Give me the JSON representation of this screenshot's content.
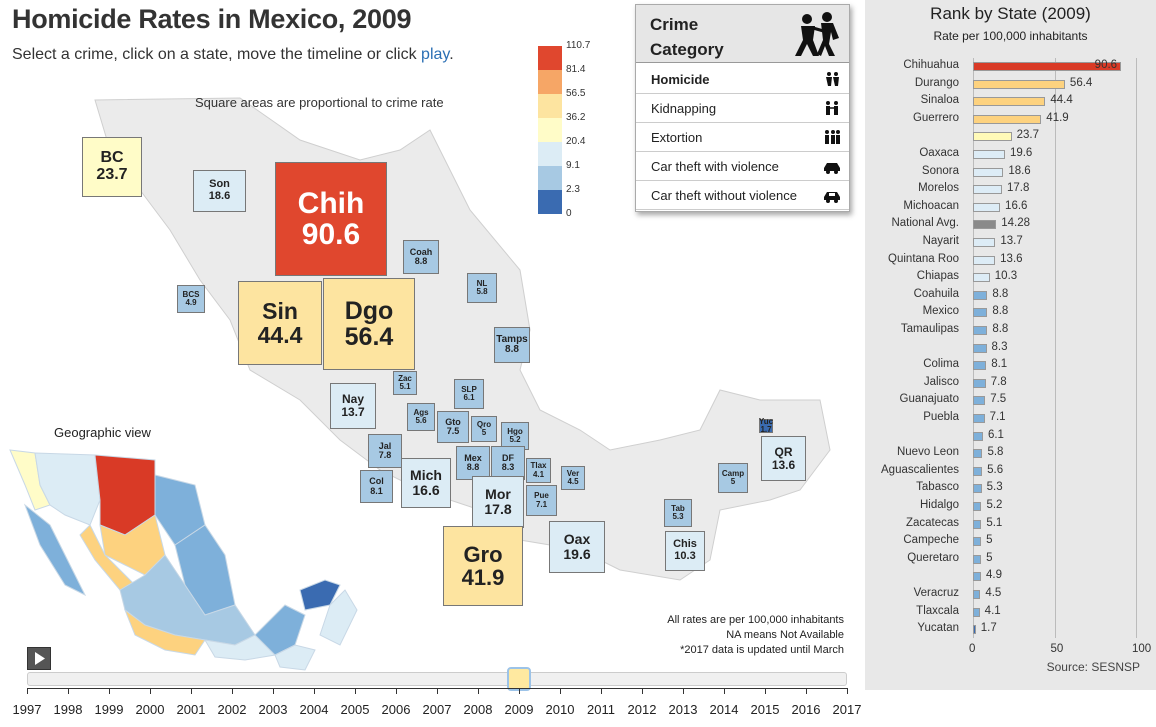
{
  "header": {
    "title": "Homicide Rates in Mexico, 2009",
    "subtitle_pre": "Select a crime, click on a state, move the timeline or click ",
    "play_link": "play",
    "subtitle_post": ".",
    "square_note": "Square areas are proportional to crime rate"
  },
  "legend": {
    "ticks": [
      "110.7",
      "81.4",
      "56.5",
      "36.2",
      "20.4",
      "9.1",
      "2.3",
      "0"
    ],
    "colors": [
      "#e0472e",
      "#f6a666",
      "#fde4a0",
      "#fffcc8",
      "#dcecf5",
      "#a7c9e3",
      "#3a6bb1"
    ]
  },
  "crime_panel": {
    "header": "Crime Category",
    "items": [
      {
        "label": "Homicide",
        "icon": "homicide-icon",
        "selected": true
      },
      {
        "label": "Kidnapping",
        "icon": "kidnapping-icon",
        "selected": false
      },
      {
        "label": "Extortion",
        "icon": "extortion-icon",
        "selected": false
      },
      {
        "label": "Car theft with violence",
        "icon": "car-theft-violent-icon",
        "selected": false
      },
      {
        "label": "Car theft without violence",
        "icon": "car-theft-icon",
        "selected": false
      }
    ]
  },
  "squares": [
    {
      "abbr": "BC",
      "value": "23.7"
    },
    {
      "abbr": "Son",
      "value": "18.6"
    },
    {
      "abbr": "Chih",
      "value": "90.6"
    },
    {
      "abbr": "Coah",
      "value": "8.8"
    },
    {
      "abbr": "BCS",
      "value": "4.9"
    },
    {
      "abbr": "Sin",
      "value": "44.4"
    },
    {
      "abbr": "Dgo",
      "value": "56.4"
    },
    {
      "abbr": "NL",
      "value": "5.8"
    },
    {
      "abbr": "Tamps",
      "value": "8.8"
    },
    {
      "abbr": "Zac",
      "value": "5.1"
    },
    {
      "abbr": "SLP",
      "value": "6.1"
    },
    {
      "abbr": "Nay",
      "value": "13.7"
    },
    {
      "abbr": "Ags",
      "value": "5.6"
    },
    {
      "abbr": "Gto",
      "value": "7.5"
    },
    {
      "abbr": "Qro",
      "value": "5"
    },
    {
      "abbr": "Hgo",
      "value": "5.2"
    },
    {
      "abbr": "Jal",
      "value": "7.8"
    },
    {
      "abbr": "Mex",
      "value": "8.8"
    },
    {
      "abbr": "DF",
      "value": "8.3"
    },
    {
      "abbr": "Tlax",
      "value": "4.1"
    },
    {
      "abbr": "Ver",
      "value": "4.5"
    },
    {
      "abbr": "Col",
      "value": "8.1"
    },
    {
      "abbr": "Mich",
      "value": "16.6"
    },
    {
      "abbr": "Mor",
      "value": "17.8"
    },
    {
      "abbr": "Pue",
      "value": "7.1"
    },
    {
      "abbr": "Yuc",
      "value": "1.7"
    },
    {
      "abbr": "QR",
      "value": "13.6"
    },
    {
      "abbr": "Camp",
      "value": "5"
    },
    {
      "abbr": "Tab",
      "value": "5.3"
    },
    {
      "abbr": "Gro",
      "value": "41.9"
    },
    {
      "abbr": "Oax",
      "value": "19.6"
    },
    {
      "abbr": "Chis",
      "value": "10.3"
    }
  ],
  "geo_label": "Geographic view",
  "notes": [
    "All rates are per 100,000 inhabitants",
    "NA means Not Available",
    "*2017 data is updated until March"
  ],
  "timeline": {
    "years": [
      "1997",
      "1998",
      "1999",
      "2000",
      "2001",
      "2002",
      "2003",
      "2004",
      "2005",
      "2006",
      "2007",
      "2008",
      "2009",
      "2010",
      "2011",
      "2012",
      "2013",
      "2014",
      "2015",
      "2016",
      "2017"
    ],
    "selected": "2009"
  },
  "chart_data": {
    "type": "bar",
    "title": "Rank by State (2009)",
    "subtitle": "Rate per 100,000 inhabitants",
    "source": "Source: SESNSP",
    "xlim": [
      0,
      100
    ],
    "xticks": [
      "0",
      "50",
      "100"
    ],
    "grid": true,
    "rows": [
      {
        "label": "Chihuahua",
        "value": 90.6,
        "shown": "90.6",
        "color": "#d93a26"
      },
      {
        "label": "Durango",
        "value": 56.4,
        "shown": "56.4",
        "color": "#fdd27f"
      },
      {
        "label": "Sinaloa",
        "value": 44.4,
        "shown": "44.4",
        "color": "#fdd27f"
      },
      {
        "label": "Guerrero",
        "value": 41.9,
        "shown": "41.9",
        "color": "#fdd27f"
      },
      {
        "label": "",
        "value": 23.7,
        "shown": "23.7",
        "color": "#fffab8"
      },
      {
        "label": "Oaxaca",
        "value": 19.6,
        "shown": "19.6",
        "color": "#ddecf6"
      },
      {
        "label": "Sonora",
        "value": 18.6,
        "shown": "18.6",
        "color": "#ddecf6"
      },
      {
        "label": "Morelos",
        "value": 17.8,
        "shown": "17.8",
        "color": "#ddecf6"
      },
      {
        "label": "Michoacan",
        "value": 16.6,
        "shown": "16.6",
        "color": "#ddecf6"
      },
      {
        "label": "National Avg.",
        "value": 14.28,
        "shown": "14.28",
        "color": "#8a8a8a"
      },
      {
        "label": "Nayarit",
        "value": 13.7,
        "shown": "13.7",
        "color": "#ddecf6"
      },
      {
        "label": "Quintana Roo",
        "value": 13.6,
        "shown": "13.6",
        "color": "#ddecf6"
      },
      {
        "label": "Chiapas",
        "value": 10.3,
        "shown": "10.3",
        "color": "#ddecf6"
      },
      {
        "label": "Coahuila",
        "value": 8.8,
        "shown": "8.8",
        "color": "#7eb0da"
      },
      {
        "label": "Mexico",
        "value": 8.8,
        "shown": "8.8",
        "color": "#7eb0da"
      },
      {
        "label": "Tamaulipas",
        "value": 8.8,
        "shown": "8.8",
        "color": "#7eb0da"
      },
      {
        "label": "",
        "value": 8.3,
        "shown": "8.3",
        "color": "#7eb0da"
      },
      {
        "label": "Colima",
        "value": 8.1,
        "shown": "8.1",
        "color": "#7eb0da"
      },
      {
        "label": "Jalisco",
        "value": 7.8,
        "shown": "7.8",
        "color": "#7eb0da"
      },
      {
        "label": "Guanajuato",
        "value": 7.5,
        "shown": "7.5",
        "color": "#7eb0da"
      },
      {
        "label": "Puebla",
        "value": 7.1,
        "shown": "7.1",
        "color": "#7eb0da"
      },
      {
        "label": "",
        "value": 6.1,
        "shown": "6.1",
        "color": "#7eb0da"
      },
      {
        "label": "Nuevo Leon",
        "value": 5.8,
        "shown": "5.8",
        "color": "#7eb0da"
      },
      {
        "label": "Aguascalientes",
        "value": 5.6,
        "shown": "5.6",
        "color": "#7eb0da"
      },
      {
        "label": "Tabasco",
        "value": 5.3,
        "shown": "5.3",
        "color": "#7eb0da"
      },
      {
        "label": "Hidalgo",
        "value": 5.2,
        "shown": "5.2",
        "color": "#7eb0da"
      },
      {
        "label": "Zacatecas",
        "value": 5.1,
        "shown": "5.1",
        "color": "#7eb0da"
      },
      {
        "label": "Campeche",
        "value": 5,
        "shown": "5",
        "color": "#7eb0da"
      },
      {
        "label": "Queretaro",
        "value": 5,
        "shown": "5",
        "color": "#7eb0da"
      },
      {
        "label": "",
        "value": 4.9,
        "shown": "4.9",
        "color": "#7eb0da"
      },
      {
        "label": "Veracruz",
        "value": 4.5,
        "shown": "4.5",
        "color": "#7eb0da"
      },
      {
        "label": "Tlaxcala",
        "value": 4.1,
        "shown": "4.1",
        "color": "#7eb0da"
      },
      {
        "label": "Yucatan",
        "value": 1.7,
        "shown": "1.7",
        "color": "#3a6bb1"
      }
    ]
  }
}
